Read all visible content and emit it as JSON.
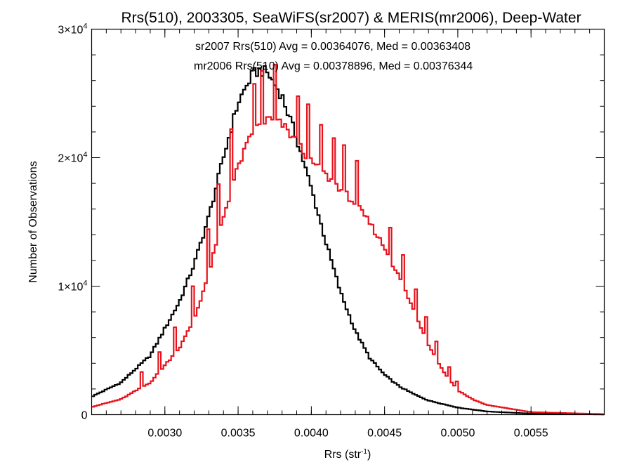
{
  "chart_data": {
    "type": "histogram-step",
    "title": "Rrs(510), 2003305, SeaWiFS(sr2007) & MERIS(mr2006), Deep-Water",
    "xlabel_main": "Rrs (str",
    "xlabel_sup": "-1",
    "xlabel_close": ")",
    "ylabel": "Number of Observations",
    "xlim": [
      0.0025,
      0.006
    ],
    "ylim": [
      0,
      30000
    ],
    "x_ticks": [
      {
        "value": 0.003,
        "label": "0.0030"
      },
      {
        "value": 0.0035,
        "label": "0.0035"
      },
      {
        "value": 0.004,
        "label": "0.0040"
      },
      {
        "value": 0.0045,
        "label": "0.0045"
      },
      {
        "value": 0.005,
        "label": "0.0050"
      },
      {
        "value": 0.0055,
        "label": "0.0055"
      }
    ],
    "x_minor_step": 0.0001,
    "y_ticks": [
      {
        "value": 0,
        "mant": "0",
        "exp": ""
      },
      {
        "value": 10000,
        "mant": "1×10",
        "exp": "4"
      },
      {
        "value": 20000,
        "mant": "2×10",
        "exp": "4"
      },
      {
        "value": 30000,
        "mant": "3×10",
        "exp": "4"
      }
    ],
    "y_minor_step": 2000,
    "bin_width": 1.75e-05,
    "series": [
      {
        "name": "sr2007",
        "color": "#000000",
        "legend": "sr2007 Rrs(510) Avg = 0.00364076, Med = 0.00363408",
        "points": [
          [
            0.0025,
            1400
          ],
          [
            0.0027,
            2500
          ],
          [
            0.0029,
            4600
          ],
          [
            0.0031,
            8800
          ],
          [
            0.0032,
            11700
          ],
          [
            0.0033,
            15400
          ],
          [
            0.0034,
            20000
          ],
          [
            0.0035,
            24300
          ],
          [
            0.0036,
            26500
          ],
          [
            0.00365,
            26800
          ],
          [
            0.0037,
            26600
          ],
          [
            0.0038,
            24800
          ],
          [
            0.0039,
            21500
          ],
          [
            0.004,
            17600
          ],
          [
            0.0041,
            13400
          ],
          [
            0.0042,
            9500
          ],
          [
            0.0043,
            6500
          ],
          [
            0.0044,
            4400
          ],
          [
            0.0045,
            3100
          ],
          [
            0.0046,
            2200
          ],
          [
            0.0047,
            1600
          ],
          [
            0.0048,
            1100
          ],
          [
            0.005,
            550
          ],
          [
            0.0052,
            250
          ],
          [
            0.0055,
            80
          ],
          [
            0.006,
            20
          ]
        ]
      },
      {
        "name": "mr2006",
        "color": "#e8121c",
        "legend": "mr2006 Rrs(510) Avg = 0.00378896, Med = 0.00376344",
        "points": [
          [
            0.0025,
            600
          ],
          [
            0.0027,
            1200
          ],
          [
            0.0029,
            2500
          ],
          [
            0.0031,
            5200
          ],
          [
            0.0032,
            7400
          ],
          [
            0.0033,
            11000
          ],
          [
            0.0034,
            15400
          ],
          [
            0.0035,
            19300
          ],
          [
            0.0036,
            22000
          ],
          [
            0.0037,
            23000
          ],
          [
            0.0038,
            22600
          ],
          [
            0.0039,
            21200
          ],
          [
            0.004,
            19700
          ],
          [
            0.0041,
            18600
          ],
          [
            0.0042,
            17600
          ],
          [
            0.0043,
            16400
          ],
          [
            0.0044,
            14900
          ],
          [
            0.0045,
            13000
          ],
          [
            0.0046,
            10700
          ],
          [
            0.0047,
            8100
          ],
          [
            0.0048,
            5500
          ],
          [
            0.0049,
            3400
          ],
          [
            0.005,
            1900
          ],
          [
            0.0051,
            1200
          ],
          [
            0.0052,
            750
          ],
          [
            0.0055,
            200
          ],
          [
            0.006,
            40
          ]
        ],
        "spikes": [
          [
            0.00284,
            1200
          ],
          [
            0.00296,
            1500
          ],
          [
            0.00307,
            2100
          ],
          [
            0.00319,
            2800
          ],
          [
            0.00329,
            3400
          ],
          [
            0.00337,
            3900
          ],
          [
            0.00346,
            4800
          ],
          [
            0.00355,
            5200
          ],
          [
            0.00361,
            3800
          ],
          [
            0.00367,
            4100
          ],
          [
            0.00375,
            4300
          ],
          [
            0.00383,
            4000
          ],
          [
            0.00391,
            3900
          ],
          [
            0.00398,
            3800
          ],
          [
            0.00407,
            3700
          ],
          [
            0.00415,
            3500
          ],
          [
            0.00422,
            3400
          ],
          [
            0.00431,
            3300
          ],
          [
            0.00439,
            3100
          ],
          [
            0.00446,
            2800
          ],
          [
            0.00454,
            2600
          ],
          [
            0.00463,
            2400
          ],
          [
            0.00471,
            2000
          ],
          [
            0.00478,
            1700
          ],
          [
            0.00486,
            1300
          ],
          [
            0.00494,
            900
          ],
          [
            0.005,
            600
          ]
        ]
      }
    ]
  }
}
